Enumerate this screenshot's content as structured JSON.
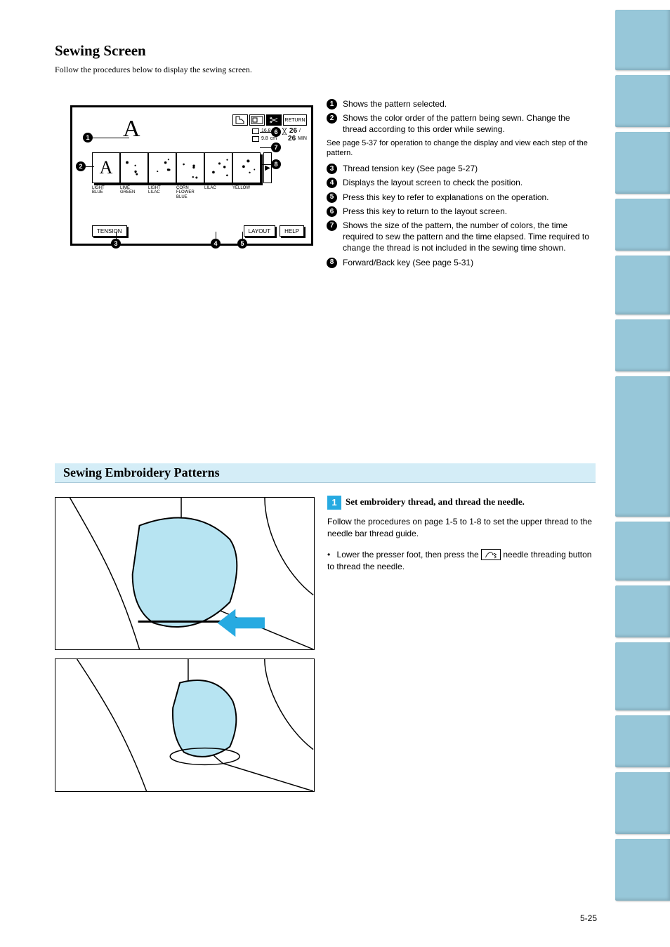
{
  "header": {
    "title": "Sewing Screen",
    "sub": "Follow the procedures below to display the sewing screen."
  },
  "screen": {
    "big_letter": "A",
    "return_label": "RETURN",
    "dims": {
      "w": "16.8",
      "h": "9.8",
      "unit": "cm",
      "count": "26",
      "total": "26",
      "min_label": "MIN"
    },
    "strip": [
      {
        "label_a": "LIGHT",
        "label_b": "BLUE",
        "glyph": "A"
      },
      {
        "label_a": "LIME",
        "label_b": "GREEN"
      },
      {
        "label_a": "LIGHT",
        "label_b": "LILAC"
      },
      {
        "label_a": "CORN",
        "label_b": "FLOWER",
        "label_c": "BLUE"
      },
      {
        "label_a": "LILAC",
        "label_b": ""
      },
      {
        "label_a": "YELLOW",
        "label_b": ""
      }
    ],
    "bottom": {
      "tension": "TENSION",
      "layout": "LAYOUT",
      "help": "HELP"
    },
    "callouts_screen": [
      "1",
      "2",
      "3",
      "4",
      "5",
      "6",
      "7",
      "8"
    ]
  },
  "legend": [
    {
      "n": "1",
      "txt": "Shows the pattern selected."
    },
    {
      "n": "2",
      "txt": "Shows the color order of the pattern being sewn. Change the thread according to this order while sewing.",
      "note": "See page 5-37 for operation to change the display and view each step of the pattern."
    },
    {
      "n": "3",
      "txt": "Thread tension key (See page 5-27)"
    },
    {
      "n": "4",
      "txt": "Displays the layout screen to check the position."
    },
    {
      "n": "5",
      "txt": "Press this key to refer to explanations on the operation."
    },
    {
      "n": "6",
      "txt": "Press this key to return to the layout screen."
    },
    {
      "n": "7",
      "txt": "Shows the size of the pattern, the number of colors, the time required to sew the pattern and the time elapsed. Time required to change the thread is not included in the sewing time shown."
    },
    {
      "n": "8",
      "txt": "Forward/Back key (See page 5-31)"
    }
  ],
  "section": {
    "title": "Sewing Embroidery Patterns"
  },
  "step": {
    "num": "1",
    "lead": "Set embroidery thread, and thread the needle.",
    "para": "Follow the procedures on page 1-5 to 1-8 to set the upper thread to the needle bar thread guide.",
    "bullet_pre": "Lower the presser foot, then press the",
    "bullet_post": "needle threading button to thread the needle."
  },
  "illus": {
    "arrow_color": "#27aae1",
    "fill": "#b7e4f2",
    "stroke": "#000000"
  },
  "tabs": {
    "count": 13,
    "color": "#97c7d9",
    "heights": [
      86,
      74,
      88,
      74,
      84,
      74,
      200,
      84,
      74,
      97,
      74,
      88,
      88
    ]
  },
  "page_number": "5-25"
}
